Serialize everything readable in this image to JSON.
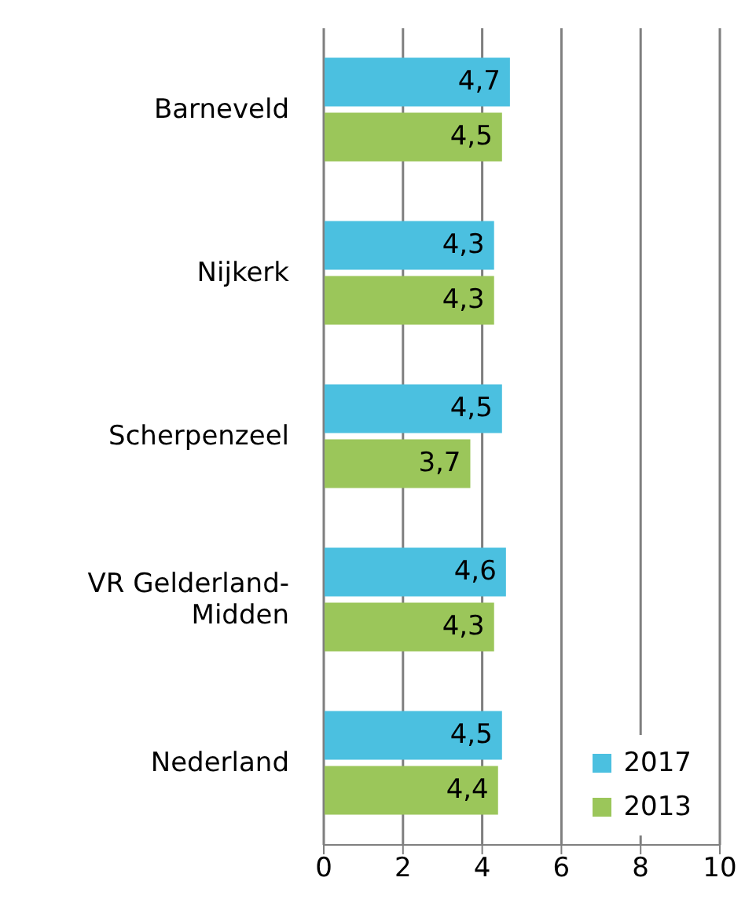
{
  "chart_data": {
    "type": "bar",
    "orientation": "horizontal",
    "categories": [
      "Barneveld",
      "Nijkerk",
      "Scherpenzeel",
      "VR Gelderland-Midden",
      "Nederland"
    ],
    "series": [
      {
        "name": "2017",
        "color": "#4bc0e0",
        "values": [
          4.7,
          4.3,
          4.5,
          4.6,
          4.5
        ],
        "value_labels": [
          "4,7",
          "4,3",
          "4,5",
          "4,6",
          "4,5"
        ]
      },
      {
        "name": "2013",
        "color": "#9bc65a",
        "values": [
          4.5,
          4.3,
          3.7,
          4.3,
          4.4
        ],
        "value_labels": [
          "4,5",
          "4,3",
          "3,7",
          "4,3",
          "4,4"
        ]
      }
    ],
    "xlim": [
      0,
      10
    ],
    "xticks": [
      0,
      2,
      4,
      6,
      8,
      10
    ],
    "grid": "x",
    "legend": "bottom right"
  }
}
